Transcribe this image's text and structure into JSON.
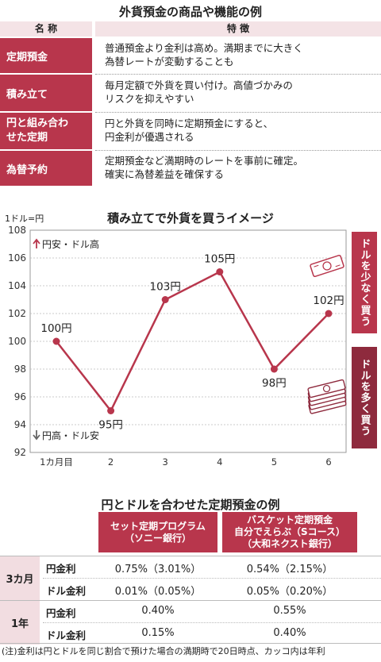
{
  "table1": {
    "title": "外貨預金の商品や機能の例",
    "col_name": "名 称",
    "col_feature": "特 徴",
    "rows": [
      {
        "name": "定期預金",
        "feature": [
          "普通預金より金利は高め。満期までに大きく",
          "為替レートが変動することも"
        ]
      },
      {
        "name": "積み立て",
        "feature": [
          "毎月定額で外貨を買い付け。高値づかみの",
          "リスクを抑えやすい"
        ]
      },
      {
        "name": "円と組み合わ|せた定期",
        "feature": [
          "円と外貨を同時に定期預金にすると、",
          "円金利が優遇される"
        ]
      },
      {
        "name": "為替予約",
        "feature": [
          "定期預金など満期時のレートを事前に確定。",
          "確実に為替差益を確保する"
        ]
      }
    ]
  },
  "chart_data": {
    "type": "line",
    "title": "積み立てで外貨を買うイメージ",
    "ylabel": "1ドル=円",
    "categories": [
      "1カ月目",
      "2",
      "3",
      "4",
      "5",
      "6"
    ],
    "values": [
      100,
      95,
      103,
      105,
      98,
      102
    ],
    "data_labels": [
      "100円",
      "95円",
      "103円",
      "105円",
      "98円",
      "102円"
    ],
    "ylim": [
      92,
      108
    ],
    "yticks": [
      92,
      94,
      96,
      98,
      100,
      102,
      104,
      106,
      108
    ],
    "grid": "horizontal",
    "annotation_up": "円安・ドル高",
    "annotation_down": "円高・ドル安",
    "side_top": "ドルを少なく買う",
    "side_bottom": "ドルを多く買う",
    "line_color": "#b8364c"
  },
  "table2": {
    "title": "円とドルを合わせた定期預金の例",
    "col1": [
      "セット定期プログラム",
      "（ソニー銀行）"
    ],
    "col2": [
      "バスケット定期預金",
      "自分でえらぶ（Sコース）",
      "（大和ネクスト銀行）"
    ],
    "groups": [
      {
        "period": "3カ月",
        "rows": [
          {
            "label": "円金利",
            "v1": "0.75%（3.01%）",
            "v2": "0.54%（2.15%）"
          },
          {
            "label": "ドル金利",
            "v1": "0.01%（0.05%）",
            "v2": "0.05%（0.20%）"
          }
        ]
      },
      {
        "period": "1年",
        "rows": [
          {
            "label": "円金利",
            "v1": "0.40%",
            "v2": "0.55%"
          },
          {
            "label": "ドル金利",
            "v1": "0.15%",
            "v2": "0.40%"
          }
        ]
      }
    ],
    "note": "(注)金利は円とドルを同じ割合で預けた場合の満期時で20日時点、カッコ内は年利"
  },
  "colors": {
    "accent": "#b8364c",
    "accent_light": "#f2dde1",
    "dark": "#9c2f44"
  }
}
